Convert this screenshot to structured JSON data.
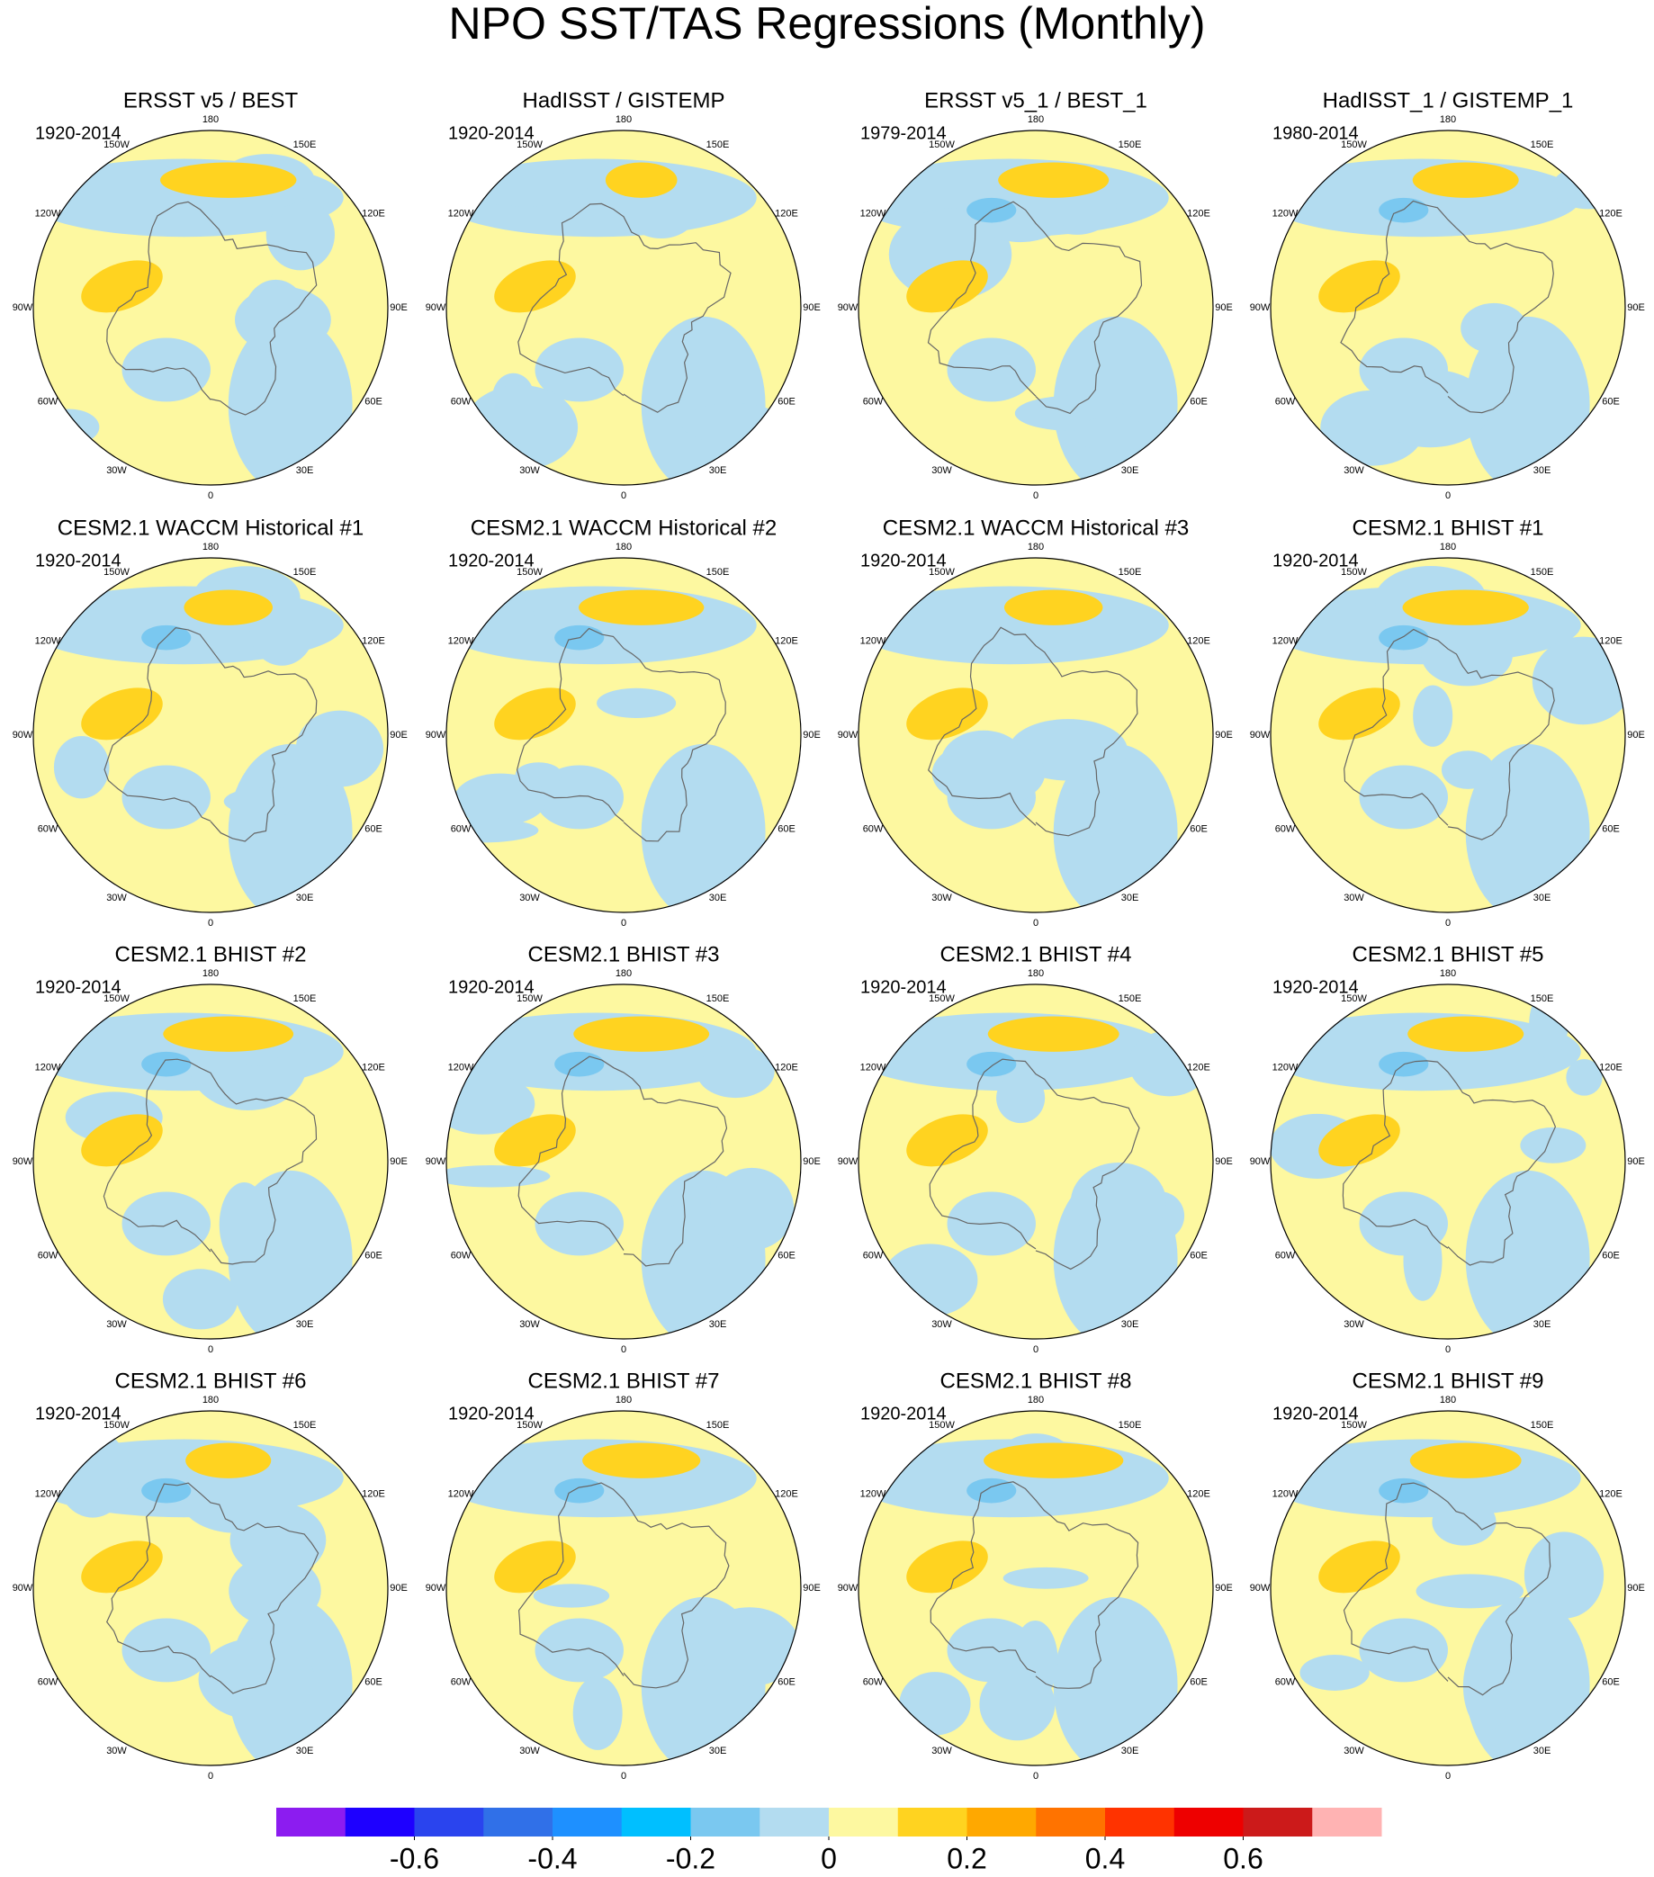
{
  "title": "NPO SST/TAS Regressions (Monthly)",
  "lon_labels": [
    "0",
    "30E",
    "60E",
    "90E",
    "120E",
    "150E",
    "180",
    "150W",
    "120W",
    "90W",
    "60W",
    "30W"
  ],
  "panels": [
    {
      "title": "ERSST v5 / BEST",
      "period": "1920-2014"
    },
    {
      "title": "HadISST / GISTEMP",
      "period": "1920-2014"
    },
    {
      "title": "ERSST v5_1 / BEST_1",
      "period": "1979-2014"
    },
    {
      "title": "HadISST_1 / GISTEMP_1",
      "period": "1980-2014"
    },
    {
      "title": "CESM2.1 WACCM Historical #1",
      "period": "1920-2014"
    },
    {
      "title": "CESM2.1 WACCM Historical #2",
      "period": "1920-2014"
    },
    {
      "title": "CESM2.1 WACCM Historical #3",
      "period": "1920-2014"
    },
    {
      "title": "CESM2.1 BHIST #1",
      "period": "1920-2014"
    },
    {
      "title": "CESM2.1 BHIST #2",
      "period": "1920-2014"
    },
    {
      "title": "CESM2.1 BHIST #3",
      "period": "1920-2014"
    },
    {
      "title": "CESM2.1 BHIST #4",
      "period": "1920-2014"
    },
    {
      "title": "CESM2.1 BHIST #5",
      "period": "1920-2014"
    },
    {
      "title": "CESM2.1 BHIST #6",
      "period": "1920-2014"
    },
    {
      "title": "CESM2.1 BHIST #7",
      "period": "1920-2014"
    },
    {
      "title": "CESM2.1 BHIST #8",
      "period": "1920-2014"
    },
    {
      "title": "CESM2.1 BHIST #9",
      "period": "1920-2014"
    }
  ],
  "colorbar": {
    "colors": [
      "#8c1cf0",
      "#1e00ff",
      "#2a44ee",
      "#3070e8",
      "#1e90ff",
      "#00bfff",
      "#7ac8f0",
      "#b3dcf0",
      "#fdf8a0",
      "#ffd320",
      "#ffa800",
      "#ff7300",
      "#ff3300",
      "#ee0000",
      "#cc1a1a",
      "#ffb3b3"
    ],
    "range": [
      -0.8,
      0.8
    ],
    "ticks": [
      -0.6,
      -0.4,
      -0.2,
      0,
      0.2,
      0.4,
      0.6
    ]
  }
}
